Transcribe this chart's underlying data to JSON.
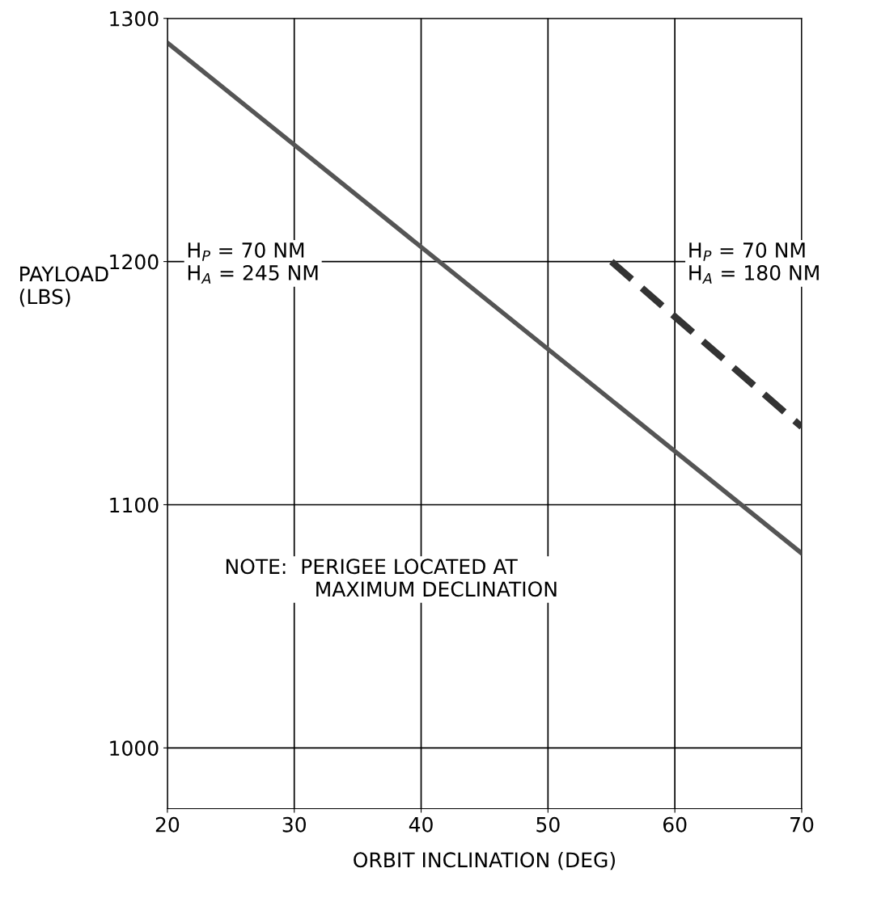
{
  "chart_data": {
    "type": "line",
    "xlabel": "ORBIT INCLINATION (DEG)",
    "ylabel": "PAYLOAD\n(LBS)",
    "series": [
      {
        "x": [
          20,
          70
        ],
        "values": [
          1290,
          1080
        ],
        "color": "#555555",
        "line_style": "solid"
      },
      {
        "x": [
          55,
          70
        ],
        "values": [
          1200,
          1132
        ],
        "color": "#333333",
        "line_style": "dashed"
      }
    ],
    "xlim": [
      20,
      70
    ],
    "xticks": [
      20,
      30,
      40,
      50,
      60,
      70
    ],
    "ylim": [
      975,
      1300
    ],
    "yticks": [
      1000,
      1100,
      1200,
      1300
    ],
    "grid": true,
    "marker": "none",
    "annotations": [
      "H$_{P}$ = 70 NM\nH$_{A}$ = 245 NM",
      "H$_{P}$ = 70 NM\nH$_{A}$ = 180 NM",
      "NOTE:  PERIGEE LOCATED AT\n              MAXIMUM DECLINATION"
    ]
  }
}
